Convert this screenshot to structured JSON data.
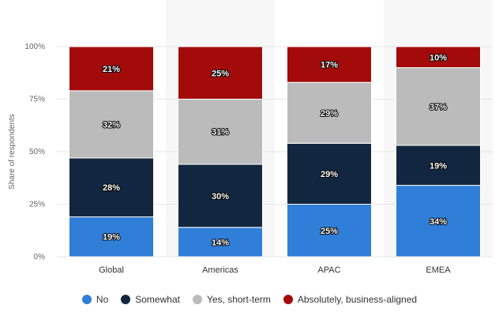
{
  "chart_data": {
    "type": "bar",
    "stacked": true,
    "categories": [
      "Global",
      "Americas",
      "APAC",
      "EMEA"
    ],
    "series": [
      {
        "name": "No",
        "color": "#2f7ed8",
        "values": [
          19,
          14,
          25,
          34
        ]
      },
      {
        "name": "Somewhat",
        "color": "#12263f",
        "values": [
          28,
          30,
          29,
          19
        ]
      },
      {
        "name": "Yes, short-term",
        "color": "#bbbbbb",
        "values": [
          32,
          31,
          29,
          37
        ]
      },
      {
        "name": "Absolutely, business-aligned",
        "color": "#a30b0b",
        "values": [
          21,
          25,
          17,
          10
        ]
      }
    ],
    "ylabel": "Share of respondents",
    "ylim": [
      0,
      100
    ],
    "yticks": [
      "0%",
      "25%",
      "50%",
      "75%",
      "100%"
    ],
    "value_suffix": "%",
    "grid": true,
    "legend_position": "bottom",
    "band_color": "#f7f7f7"
  }
}
